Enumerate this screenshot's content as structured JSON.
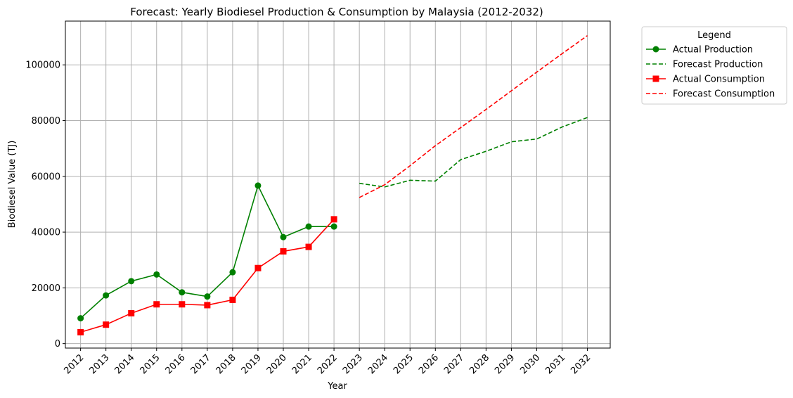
{
  "chart_data": {
    "type": "line",
    "title": "Forecast: Yearly Biodiesel Production & Consumption by Malaysia (2012-2032)",
    "xlabel": "Year",
    "ylabel": "Biodiesel Value (TJ)",
    "x": [
      "2012",
      "2013",
      "2014",
      "2015",
      "2016",
      "2017",
      "2018",
      "2019",
      "2020",
      "2021",
      "2022",
      "2023",
      "2024",
      "2025",
      "2026",
      "2027",
      "2028",
      "2029",
      "2030",
      "2031",
      "2032"
    ],
    "xlim": [
      2011.4,
      2032.9
    ],
    "ylim": [
      -1600,
      115700
    ],
    "yticks": [
      0,
      20000,
      40000,
      60000,
      80000,
      100000
    ],
    "grid": true,
    "legend": {
      "title": "Legend",
      "placement": "outside-top-right"
    },
    "series": [
      {
        "name": "Actual Production",
        "color": "#008000",
        "style": "solid",
        "marker": "circle",
        "x": [
          2012,
          2013,
          2014,
          2015,
          2016,
          2017,
          2018,
          2019,
          2020,
          2021,
          2022
        ],
        "values": [
          9100,
          17300,
          22400,
          24800,
          18400,
          16900,
          25600,
          56700,
          38200,
          42000,
          42000
        ]
      },
      {
        "name": "Forecast Production",
        "color": "#008000",
        "style": "dashed",
        "marker": "none",
        "x": [
          2023,
          2024,
          2025,
          2026,
          2027,
          2028,
          2029,
          2030,
          2031,
          2032
        ],
        "values": [
          57500,
          56200,
          58600,
          58300,
          66000,
          69000,
          72400,
          73400,
          77700,
          81100
        ]
      },
      {
        "name": "Actual Consumption",
        "color": "#ff0000",
        "style": "solid",
        "marker": "square",
        "x": [
          2012,
          2013,
          2014,
          2015,
          2016,
          2017,
          2018,
          2019,
          2020,
          2021,
          2022
        ],
        "values": [
          4100,
          6800,
          10900,
          14100,
          14100,
          13800,
          15700,
          27100,
          33100,
          34700,
          44600
        ]
      },
      {
        "name": "Forecast Consumption",
        "color": "#ff0000",
        "style": "dashed",
        "marker": "none",
        "x": [
          2023,
          2024,
          2025,
          2026,
          2027,
          2028,
          2029,
          2030,
          2031,
          2032
        ],
        "values": [
          52400,
          57000,
          63800,
          71000,
          77500,
          84000,
          90700,
          97400,
          104000,
          110500
        ]
      }
    ]
  }
}
